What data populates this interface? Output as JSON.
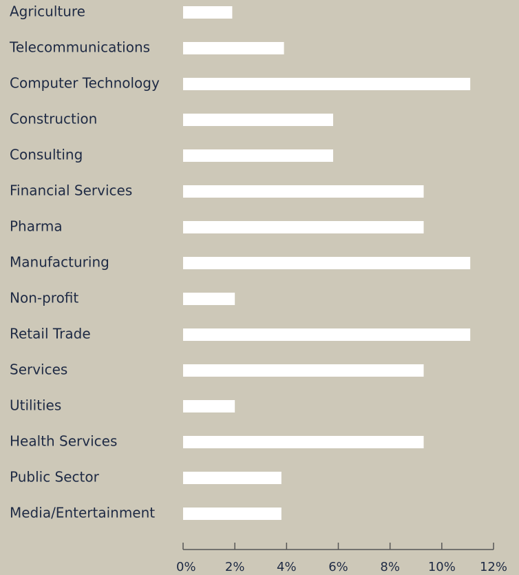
{
  "chart_data": {
    "type": "bar",
    "orientation": "horizontal",
    "categories": [
      "Agriculture",
      "Telecommunications",
      "Computer Technology",
      "Construction",
      "Consulting",
      "Financial Services",
      "Pharma",
      "Manufacturing",
      "Non-profit",
      "Retail Trade",
      "Services",
      "Utilities",
      "Health Services",
      "Public Sector",
      "Media/Entertainment"
    ],
    "values": [
      1.9,
      3.9,
      11.1,
      5.8,
      5.8,
      9.3,
      9.3,
      11.1,
      2.0,
      11.1,
      9.3,
      2.0,
      9.3,
      3.8,
      3.8
    ],
    "color": "#ffffff",
    "xlim": [
      0,
      12
    ],
    "xticks": [
      {
        "value": 0,
        "label": "0%"
      },
      {
        "value": 2,
        "label": "2%"
      },
      {
        "value": 4,
        "label": "4%"
      },
      {
        "value": 6,
        "label": "6%"
      },
      {
        "value": 8,
        "label": "8%"
      },
      {
        "value": 10,
        "label": "10%"
      },
      {
        "value": 12,
        "label": "12%"
      }
    ],
    "grid": false
  }
}
